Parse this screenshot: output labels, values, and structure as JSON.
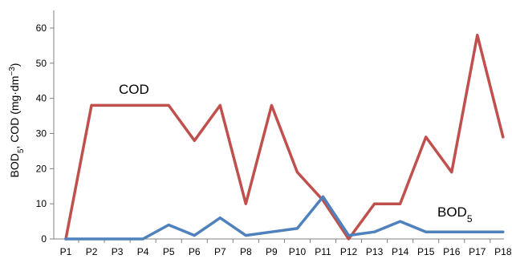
{
  "chart_data": {
    "type": "line",
    "title": "",
    "xlabel": "",
    "ylabel": "BOD5, COD (mg·dm−3)",
    "ylabel_parts": {
      "a": "BOD",
      "a_sub": "5",
      "b": ", COD (mg·dm",
      "b_sup": "−3",
      "c": ")"
    },
    "categories": [
      "P1",
      "P2",
      "P3",
      "P4",
      "P5",
      "P6",
      "P7",
      "P8",
      "P9",
      "P10",
      "P11",
      "P12",
      "P13",
      "P14",
      "P15",
      "P16",
      "P17",
      "P18"
    ],
    "ylim": [
      0,
      65
    ],
    "yticks": [
      0,
      10,
      20,
      30,
      40,
      50,
      60
    ],
    "grid": false,
    "legend": "none",
    "series": [
      {
        "name": "COD",
        "label_text": "COD",
        "color": "#C0504D",
        "values": [
          0,
          38,
          38,
          38,
          38,
          28,
          38,
          10,
          38,
          19,
          11,
          0,
          10,
          10,
          29,
          19,
          58,
          29
        ]
      },
      {
        "name": "BOD5",
        "label_text": "BOD",
        "label_sub": "5",
        "color": "#4F81BD",
        "values": [
          0,
          0,
          0,
          0,
          4,
          1,
          6,
          1,
          2,
          3,
          12,
          1,
          2,
          5,
          2,
          2,
          2,
          2
        ]
      }
    ]
  }
}
